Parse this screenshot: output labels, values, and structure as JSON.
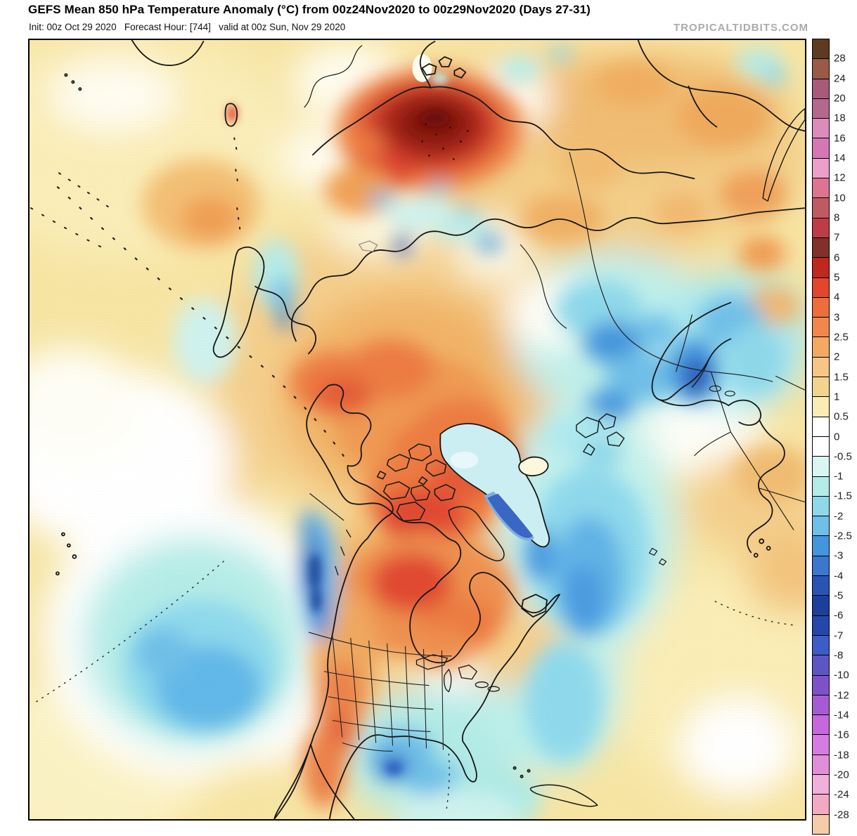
{
  "header": {
    "title": "GEFS Mean 850 hPa Temperature Anomaly (°C) from 00z24Nov2020 to 00z29Nov2020 (Days 27-31)",
    "subtitle": "Init: 00z Oct 29 2020   Forecast Hour: [744]   valid at 00z Sun, Nov 29 2020",
    "watermark": "TROPICALTIDBITS.COM"
  },
  "colorbar": {
    "unit": "°C",
    "tick_labels": [
      "28",
      "24",
      "20",
      "18",
      "16",
      "14",
      "12",
      "10",
      "8",
      "7",
      "6",
      "5",
      "4",
      "3",
      "2.5",
      "2",
      "1.5",
      "1",
      "0.5",
      "0",
      "-0.5",
      "-1",
      "-1.5",
      "-2",
      "-2.5",
      "-3",
      "-4",
      "-5",
      "-6",
      "-7",
      "-8",
      "-10",
      "-12",
      "-14",
      "-16",
      "-18",
      "-20",
      "-24",
      "-28"
    ],
    "cell_colors": [
      "#5E3B20",
      "#9A5A46",
      "#A85A78",
      "#B5688E",
      "#DC8BBB",
      "#D478B4",
      "#EC9FCB",
      "#DE7490",
      "#BF5A63",
      "#BC3D46",
      "#81302A",
      "#C0271E",
      "#E2472E",
      "#ED6E3C",
      "#F0874C",
      "#F4A963",
      "#F6C687",
      "#F2D491",
      "#F9ECB4",
      "#FFFFFF",
      "#FFFFFF",
      "#DAF6F3",
      "#B3ECE8",
      "#8ED8EA",
      "#6FBFE8",
      "#4495DC",
      "#3B77CE",
      "#2A53B6",
      "#1D3E9B",
      "#2547AC",
      "#3D5CC8",
      "#5E55C5",
      "#7D52C9",
      "#A55CD3",
      "#C667DB",
      "#D67BE3",
      "#E18ED8",
      "#EFB0D9",
      "#F2A9C3",
      "#F5CBA8"
    ]
  }
}
